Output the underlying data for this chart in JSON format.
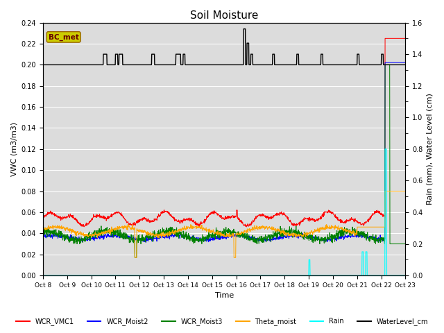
{
  "title": "Soil Moisture",
  "xlabel": "Time",
  "ylabel_left": "VWC (m3/m3)",
  "ylabel_right": "Rain (mm), Water Level (cm)",
  "ylim_left": [
    0.0,
    0.24
  ],
  "ylim_right": [
    0.0,
    1.6
  ],
  "bg_color": "#dcdcdc",
  "bc_met_box_facecolor": "#cccc00",
  "bc_met_box_edgecolor": "#996600",
  "bc_met_text_color": "#660000",
  "tick_labels": [
    "Oct 8",
    "Oct 9",
    "Oct 10Oct 11Oct 12Oct 13Oct 14Oct 15Oct 16Oct 17Oct 18Oct 19Oct 20Oct 21Oct 22Oct 23"
  ],
  "x_tick_labels": [
    "Oct 8",
    "Oct 9",
    "Oct 10",
    "Oct 11",
    "Oct 12",
    "Oct 13",
    "Oct 14",
    "Oct 15",
    "Oct 16",
    "Oct 17",
    "Oct 18",
    "Oct 19",
    "Oct 20",
    "Oct 21",
    "Oct 22",
    "Oct 23"
  ],
  "yticks_left": [
    0.0,
    0.02,
    0.04,
    0.06,
    0.08,
    0.1,
    0.12,
    0.14,
    0.16,
    0.18,
    0.2,
    0.22,
    0.24
  ],
  "yticks_right": [
    0.0,
    0.2,
    0.4,
    0.6,
    0.8,
    1.0,
    1.2,
    1.4,
    1.6
  ],
  "n_points": 1500
}
